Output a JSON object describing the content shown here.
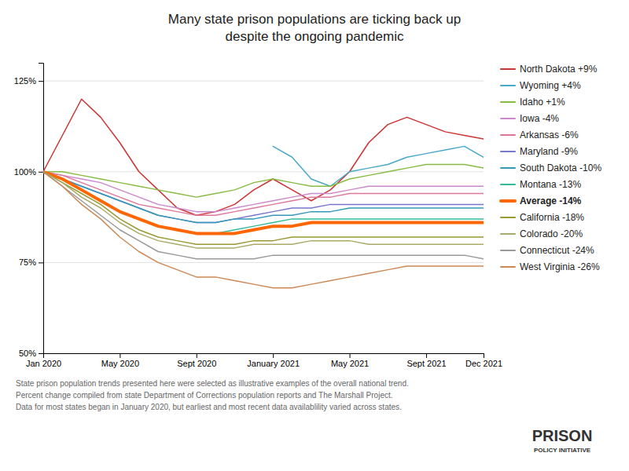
{
  "chart_data": {
    "type": "line",
    "title": "Many state prison populations are ticking back up\ndespite the ongoing pandemic",
    "x": [
      0,
      1,
      2,
      3,
      4,
      5,
      6,
      7,
      8,
      9,
      10,
      11,
      12,
      13,
      14,
      15,
      16,
      17,
      18,
      19,
      20,
      21,
      22,
      23
    ],
    "xlim": [
      0,
      23
    ],
    "xticks": [
      {
        "value": 0,
        "label": "Jan 2020"
      },
      {
        "value": 4,
        "label": "May 2020"
      },
      {
        "value": 8,
        "label": "Sept 2020"
      },
      {
        "value": 12,
        "label": "January 2021"
      },
      {
        "value": 16,
        "label": "May 2021"
      },
      {
        "value": 20,
        "label": "Sept 2021"
      },
      {
        "value": 23,
        "label": "Dec 2021"
      }
    ],
    "ylim": [
      50,
      130
    ],
    "yticks": [
      {
        "value": 50,
        "label": "50%"
      },
      {
        "value": 75,
        "label": "75%"
      },
      {
        "value": 100,
        "label": "100%"
      },
      {
        "value": 125,
        "label": "125%"
      }
    ],
    "grid": true,
    "legend": "right",
    "series": [
      {
        "name": "North Dakota +9%",
        "color": "#cc3333",
        "values": [
          100,
          110,
          120,
          115,
          108,
          100,
          95,
          90,
          88,
          89,
          91,
          95,
          98,
          95,
          92,
          95,
          100,
          108,
          113,
          115,
          113,
          111,
          110,
          109
        ]
      },
      {
        "name": "Wyoming +4%",
        "color": "#4aa8c8",
        "values": [
          null,
          null,
          null,
          null,
          null,
          null,
          null,
          null,
          null,
          null,
          null,
          null,
          107,
          104,
          98,
          96,
          100,
          101,
          102,
          104,
          105,
          106,
          107,
          104
        ]
      },
      {
        "name": "Idaho +1%",
        "color": "#88bb44",
        "values": [
          100,
          100,
          99,
          98,
          97,
          96,
          95,
          94,
          93,
          94,
          95,
          97,
          98,
          97,
          96,
          96,
          98,
          99,
          100,
          101,
          102,
          102,
          102,
          101
        ]
      },
      {
        "name": "Iowa -4%",
        "color": "#cc88cc",
        "values": [
          100,
          99,
          98,
          97,
          95,
          93,
          91,
          90,
          89,
          89,
          90,
          91,
          92,
          93,
          94,
          94,
          95,
          96,
          96,
          96,
          96,
          96,
          96,
          96
        ]
      },
      {
        "name": "Arkansas -6%",
        "color": "#dd7799",
        "values": [
          100,
          99,
          97,
          95,
          93,
          91,
          90,
          89,
          88,
          88,
          89,
          90,
          91,
          92,
          93,
          93,
          94,
          94,
          94,
          94,
          94,
          94,
          94,
          94
        ]
      },
      {
        "name": "Maryland -9%",
        "color": "#7777cc",
        "values": [
          100,
          98,
          96,
          94,
          92,
          90,
          88,
          87,
          86,
          86,
          87,
          88,
          89,
          90,
          90,
          91,
          91,
          91,
          91,
          91,
          91,
          91,
          91,
          91
        ]
      },
      {
        "name": "South Dakota -10%",
        "color": "#3399bb",
        "values": [
          100,
          98,
          96,
          94,
          92,
          90,
          88,
          87,
          86,
          86,
          87,
          87,
          88,
          88,
          89,
          89,
          90,
          90,
          90,
          90,
          90,
          90,
          90,
          90
        ]
      },
      {
        "name": "Montana -13%",
        "color": "#33bb99",
        "values": [
          100,
          98,
          95,
          92,
          89,
          87,
          85,
          84,
          83,
          83,
          84,
          85,
          86,
          87,
          87,
          87,
          87,
          87,
          87,
          87,
          87,
          87,
          87,
          87
        ]
      },
      {
        "name": "Average  -14%",
        "color": "#ff6600",
        "line_style": "thick",
        "values": [
          100,
          98,
          95,
          92,
          89,
          87,
          85,
          84,
          83,
          83,
          83,
          84,
          85,
          85,
          86,
          86,
          86,
          86,
          86,
          86,
          86,
          86,
          86,
          86
        ]
      },
      {
        "name": "California -18%",
        "color": "#999933",
        "values": [
          100,
          97,
          94,
          91,
          87,
          84,
          82,
          81,
          80,
          80,
          80,
          81,
          81,
          82,
          82,
          82,
          82,
          82,
          82,
          82,
          82,
          82,
          82,
          82
        ]
      },
      {
        "name": "Colorado -20%",
        "color": "#aaaa66",
        "values": [
          100,
          97,
          93,
          90,
          86,
          83,
          81,
          80,
          79,
          79,
          79,
          80,
          80,
          80,
          81,
          81,
          81,
          80,
          80,
          80,
          80,
          80,
          80,
          80
        ]
      },
      {
        "name": "Connecticut -24%",
        "color": "#999999",
        "values": [
          100,
          96,
          92,
          88,
          84,
          81,
          78,
          77,
          76,
          76,
          76,
          76,
          77,
          77,
          77,
          77,
          77,
          77,
          77,
          77,
          77,
          77,
          77,
          76
        ]
      },
      {
        "name": "West Virginia -26%",
        "color": "#cc8855",
        "values": [
          100,
          96,
          91,
          87,
          82,
          78,
          75,
          73,
          71,
          71,
          70,
          69,
          68,
          68,
          69,
          70,
          71,
          72,
          73,
          74,
          74,
          74,
          74,
          74
        ]
      }
    ],
    "annotations": [
      "State prison population trends presented here were selected as illustrative examples of the overall national trend.",
      "Percent change compiled from state Department of Corrections population reports and The Marshall Project.",
      "Data for most states began in January 2020, but earliest and most recent data availablility varied across states.",
      "PRISON",
      "POLICY INITIATIVE"
    ]
  }
}
